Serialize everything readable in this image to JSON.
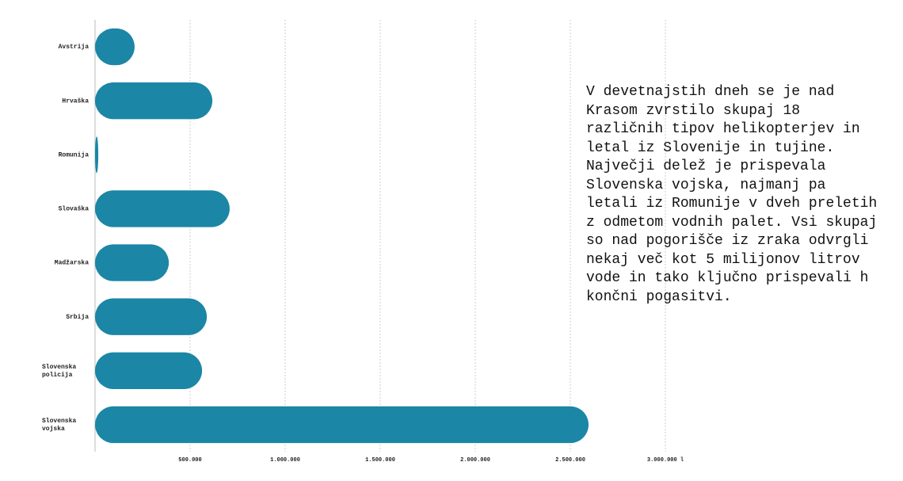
{
  "chart_data": {
    "type": "bar",
    "orientation": "horizontal",
    "categories": [
      "Avstrija",
      "Hrvaška",
      "Romunija",
      "Slovaška",
      "Madžarska",
      "Srbija",
      "Slovenska policija",
      "Slovenska vojska"
    ],
    "values": [
      208000,
      617000,
      17000,
      708000,
      388000,
      588000,
      563000,
      2596000
    ],
    "color": "#1b86a6",
    "xlim": [
      0,
      3000000
    ],
    "xticks": [
      {
        "value": 500000,
        "label": "500.000"
      },
      {
        "value": 1000000,
        "label": "1.000.000"
      },
      {
        "value": 1500000,
        "label": "1.500.000"
      },
      {
        "value": 2000000,
        "label": "2.000.000"
      },
      {
        "value": 2500000,
        "label": "2.500.000"
      },
      {
        "value": 3000000,
        "label": "3.000.000 l"
      }
    ],
    "grid": true,
    "annotation": "V devetnajstih dneh se je nad Krasom zvrstilo skupaj 18 različnih tipov helikopterjev in letal iz Slovenije in tujine. Največji delež je prispevala Slovenska vojska, najmanj pa letali iz Romunije v dveh preletih z odmetom vodnih palet. Vsi skupaj so nad pogorišče iz zraka odvrgli nekaj več kot 5 milijonov litrov vode in tako ključno prispevali h končni pogasitvi."
  }
}
